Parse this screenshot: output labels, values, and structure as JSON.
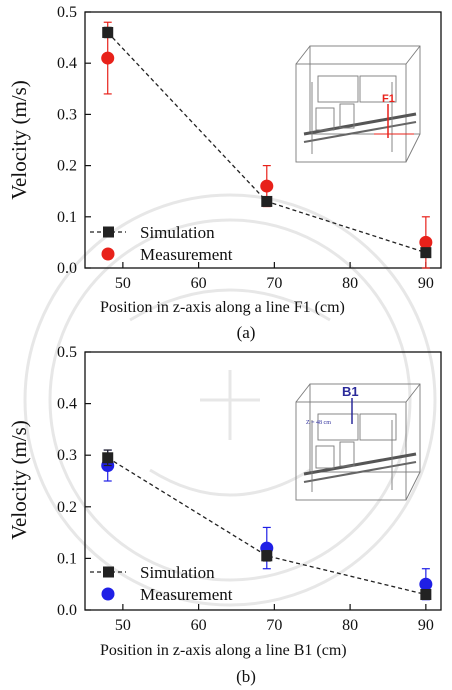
{
  "chart_data": [
    {
      "type": "scatter",
      "panel_label": "(a)",
      "xlabel": "Position in z-axis along a line F1 (cm)",
      "ylabel": "Velocity (m/s)",
      "xlim": [
        45,
        92
      ],
      "ylim": [
        0,
        0.5
      ],
      "xticks": [
        50,
        60,
        70,
        80,
        90
      ],
      "yticks": [
        0.0,
        0.1,
        0.2,
        0.3,
        0.4,
        0.5
      ],
      "grid": false,
      "legend_position": "bottom-left",
      "inset_label": "F1",
      "series": [
        {
          "name": "Simulation",
          "marker": "square",
          "line": "dashed",
          "color": "#222222",
          "x": [
            48,
            69,
            90
          ],
          "y": [
            0.46,
            0.13,
            0.03
          ],
          "err": [
            0.01,
            0.0,
            0.0
          ]
        },
        {
          "name": "Measurement",
          "marker": "circle",
          "line": "none",
          "color": "#e8211a",
          "x": [
            48,
            69,
            90
          ],
          "y": [
            0.41,
            0.16,
            0.05
          ],
          "err": [
            0.07,
            0.04,
            0.05
          ]
        }
      ]
    },
    {
      "type": "scatter",
      "panel_label": "(b)",
      "xlabel": "Position in z-axis along a line B1 (cm)",
      "ylabel": "Velocity (m/s)",
      "xlim": [
        45,
        92
      ],
      "ylim": [
        0,
        0.5
      ],
      "xticks": [
        50,
        60,
        70,
        80,
        90
      ],
      "yticks": [
        0.0,
        0.1,
        0.2,
        0.3,
        0.4,
        0.5
      ],
      "grid": false,
      "legend_position": "bottom-left",
      "inset_label": "B1",
      "inset_sublabel": "Z = 48 cm",
      "series": [
        {
          "name": "Simulation",
          "marker": "square",
          "line": "dashed",
          "color": "#222222",
          "x": [
            48,
            69,
            90
          ],
          "y": [
            0.295,
            0.105,
            0.03
          ],
          "err": [
            0.015,
            0.01,
            0.0
          ]
        },
        {
          "name": "Measurement",
          "marker": "circle",
          "line": "none",
          "color": "#1f1fe6",
          "x": [
            48,
            69,
            90
          ],
          "y": [
            0.28,
            0.12,
            0.05
          ],
          "err": [
            0.03,
            0.04,
            0.03
          ]
        }
      ]
    }
  ]
}
